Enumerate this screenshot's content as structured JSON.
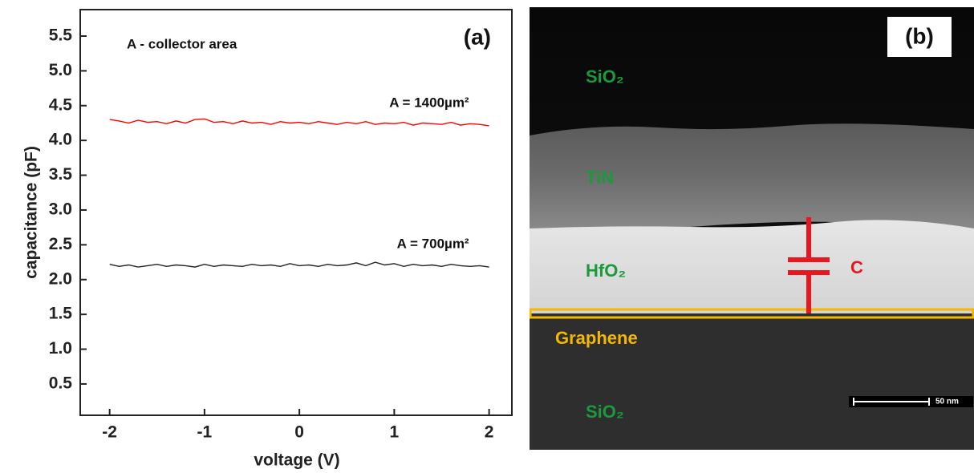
{
  "chart_data": {
    "type": "line",
    "xlabel": "voltage (V)",
    "ylabel": "capacitance (pF)",
    "annotations": [
      "A - collector area",
      "(a)"
    ],
    "x": [
      -2,
      -1.9,
      -1.8,
      -1.7,
      -1.6,
      -1.5,
      -1.4,
      -1.3,
      -1.2,
      -1.1,
      -1,
      -0.9,
      -0.8,
      -0.7,
      -0.6,
      -0.5,
      -0.4,
      -0.3,
      -0.2,
      -0.1,
      0,
      0.1,
      0.2,
      0.3,
      0.4,
      0.5,
      0.6,
      0.7,
      0.8,
      0.9,
      1,
      1.1,
      1.2,
      1.3,
      1.4,
      1.5,
      1.6,
      1.7,
      1.8,
      1.9,
      2
    ],
    "series": [
      {
        "name": "A = 1400µm²",
        "color": "#ff0000",
        "values": [
          4.3,
          4.28,
          4.25,
          4.29,
          4.26,
          4.27,
          4.24,
          4.28,
          4.25,
          4.3,
          4.31,
          4.26,
          4.27,
          4.24,
          4.28,
          4.25,
          4.26,
          4.23,
          4.27,
          4.25,
          4.26,
          4.24,
          4.27,
          4.25,
          4.23,
          4.26,
          4.24,
          4.27,
          4.23,
          4.25,
          4.24,
          4.26,
          4.22,
          4.25,
          4.24,
          4.23,
          4.26,
          4.22,
          4.24,
          4.23,
          4.21
        ]
      },
      {
        "name": "A = 700µm²",
        "color": "#222222",
        "values": [
          2.22,
          2.19,
          2.21,
          2.18,
          2.2,
          2.22,
          2.19,
          2.21,
          2.2,
          2.18,
          2.22,
          2.19,
          2.21,
          2.2,
          2.19,
          2.22,
          2.2,
          2.21,
          2.19,
          2.23,
          2.2,
          2.21,
          2.19,
          2.22,
          2.2,
          2.21,
          2.24,
          2.2,
          2.25,
          2.21,
          2.23,
          2.19,
          2.22,
          2.2,
          2.21,
          2.19,
          2.22,
          2.2,
          2.19,
          2.2,
          2.18
        ]
      }
    ],
    "xlim": [
      -2.31,
      2.24
    ],
    "ylim": [
      0.05,
      5.88
    ],
    "xticks": [
      -2,
      -1,
      0,
      1,
      2
    ],
    "yticks": [
      0.5,
      {
        "value": 1,
        "label": "1.0"
      },
      1.5,
      {
        "value": 2,
        "label": "2.0"
      },
      2.5,
      {
        "value": 3,
        "label": "3.0"
      },
      3.5,
      {
        "value": 4,
        "label": "4.0"
      },
      4.5,
      {
        "value": 5,
        "label": "5.0"
      },
      5.5
    ]
  },
  "panel_b": {
    "label": "(b)",
    "layers": [
      "SiO₂",
      "TiN",
      "HfO₂",
      "Graphene",
      "SiO₂"
    ],
    "capacitor": "C",
    "scale_bar": "50 nm"
  }
}
